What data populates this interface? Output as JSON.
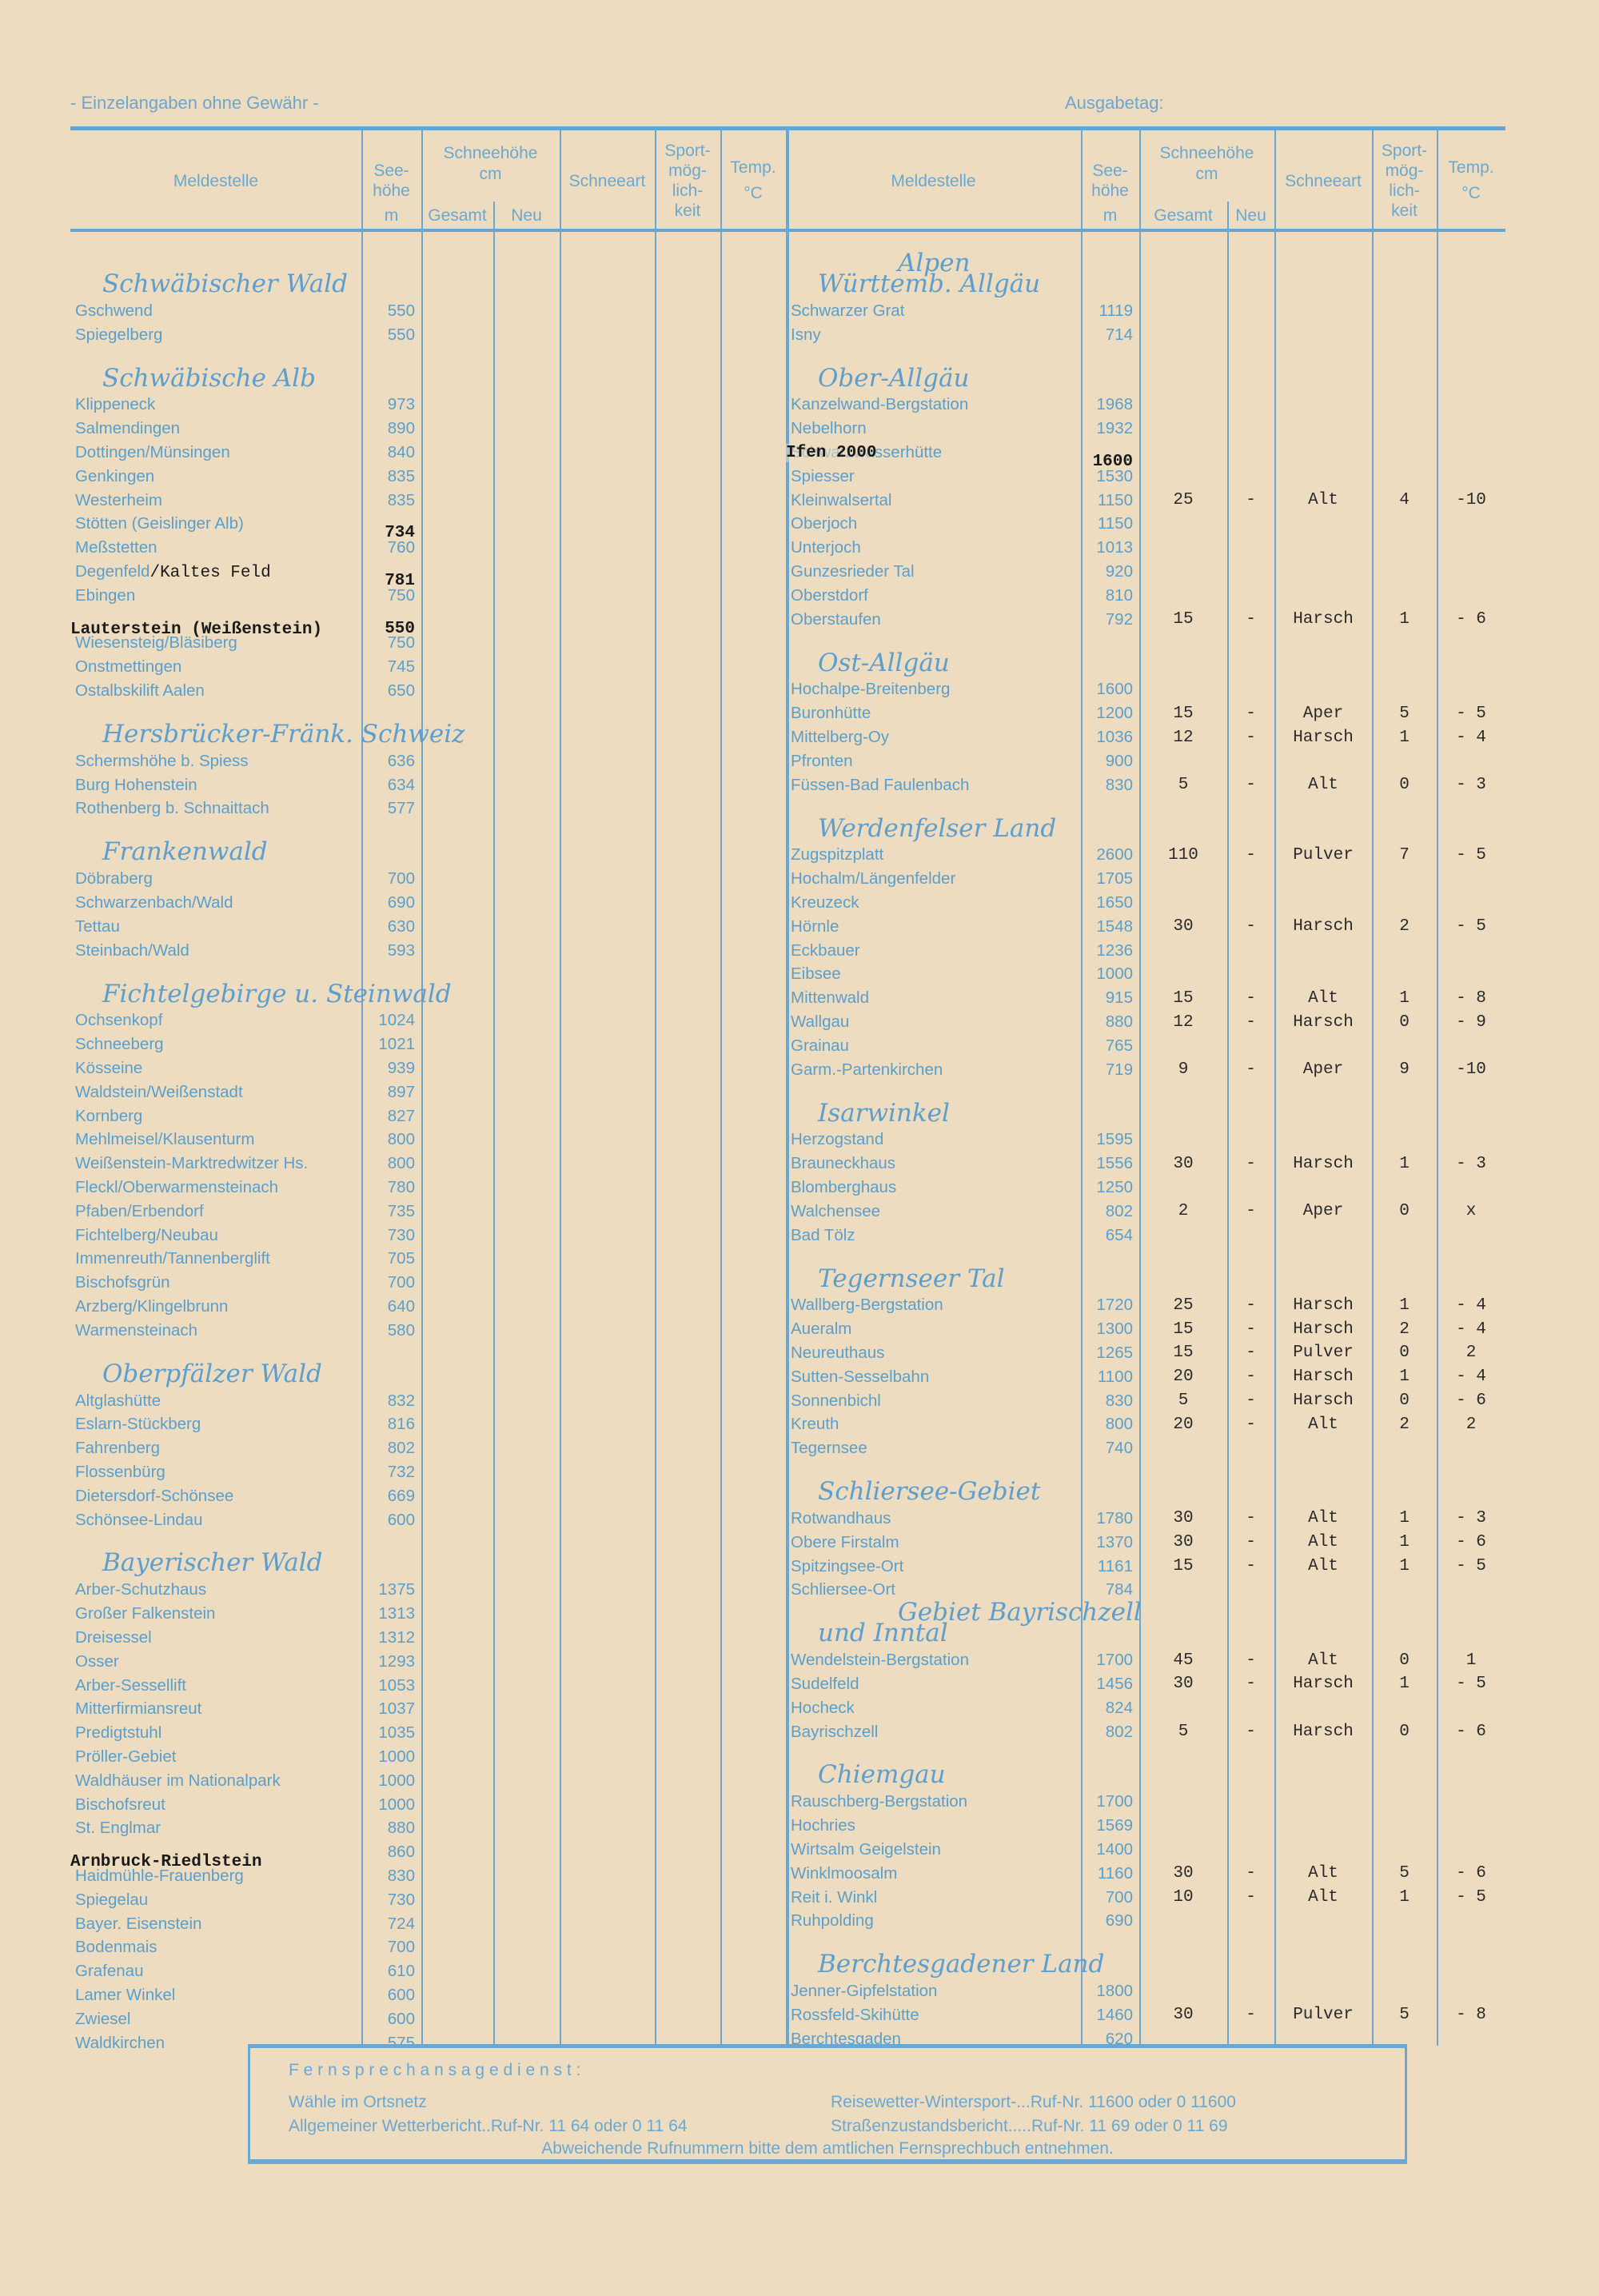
{
  "top": {
    "disclaimer": "- Einzelangaben ohne Gewähr -",
    "issue_date_label": "Ausgabetag:"
  },
  "columns": {
    "station": "Meldestelle",
    "altitude": "See-\nhöhe",
    "altitude_unit": "m",
    "snow_depth": "Schneehöhe",
    "snow_depth_unit": "cm",
    "total": "Gesamt",
    "new": "Neu",
    "snow_type": "Schneeart",
    "sport": "Sport-\nmög-\nlich-\nkeit",
    "temp": "Temp.",
    "temp_unit": "°C"
  },
  "left": [
    {
      "heading": [
        "Schwäbischer Wald"
      ],
      "rows": [
        {
          "name": "Gschwend",
          "alt": "550"
        },
        {
          "name": "Spiegelberg",
          "alt": "550"
        }
      ]
    },
    {
      "heading": [
        "Schwäbische Alb"
      ],
      "rows": [
        {
          "name": "Klippeneck",
          "alt": "973"
        },
        {
          "name": "Salmendingen",
          "alt": "890"
        },
        {
          "name": "Dottingen/Münsingen",
          "alt": "840"
        },
        {
          "name": "Genkingen",
          "alt": "835"
        },
        {
          "name": "Westerheim",
          "alt": "835"
        },
        {
          "name": "Stötten (Geislinger Alb)",
          "typed_alt": "734"
        },
        {
          "name": "Meßstetten",
          "alt": "760"
        },
        {
          "name": "Degenfeld",
          "typed_suffix": "/Kaltes Feld",
          "typed_alt": "781"
        },
        {
          "name": "Ebingen",
          "alt": "750"
        },
        {
          "typed_name": "Lauterstein (Weißenstein)",
          "typed_alt": "550"
        },
        {
          "name": "Wiesensteig/Bläsiberg",
          "alt": "750"
        },
        {
          "name": "Onstmettingen",
          "alt": "745"
        },
        {
          "name": "Ostalbskilift Aalen",
          "alt": "650"
        }
      ]
    },
    {
      "heading": [
        "Hersbrücker-Fränk. Schweiz"
      ],
      "rows": [
        {
          "name": "Schermshöhe b. Spiess",
          "alt": "636"
        },
        {
          "name": "Burg Hohenstein",
          "alt": "634"
        },
        {
          "name": "Rothenberg b. Schnaittach",
          "alt": "577"
        }
      ]
    },
    {
      "heading": [
        "Frankenwald"
      ],
      "rows": [
        {
          "name": "Döbraberg",
          "alt": "700"
        },
        {
          "name": "Schwarzenbach/Wald",
          "alt": "690"
        },
        {
          "name": "Tettau",
          "alt": "630"
        },
        {
          "name": "Steinbach/Wald",
          "alt": "593"
        }
      ]
    },
    {
      "heading": [
        "Fichtelgebirge u. Steinwald"
      ],
      "rows": [
        {
          "name": "Ochsenkopf",
          "alt": "1024"
        },
        {
          "name": "Schneeberg",
          "alt": "1021"
        },
        {
          "name": "Kösseine",
          "alt": "939"
        },
        {
          "name": "Waldstein/Weißenstadt",
          "alt": "897"
        },
        {
          "name": "Kornberg",
          "alt": "827"
        },
        {
          "name": "Mehlmeisel/Klausenturm",
          "alt": "800"
        },
        {
          "name": "Weißenstein-Marktredwitzer Hs.",
          "alt": "800"
        },
        {
          "name": "Fleckl/Oberwarmensteinach",
          "alt": "780"
        },
        {
          "name": "Pfaben/Erbendorf",
          "alt": "735"
        },
        {
          "name": "Fichtelberg/Neubau",
          "alt": "730"
        },
        {
          "name": "Immenreuth/Tannenberglift",
          "alt": "705"
        },
        {
          "name": "Bischofsgrün",
          "alt": "700"
        },
        {
          "name": "Arzberg/Klingelbrunn",
          "alt": "640"
        },
        {
          "name": "Warmensteinach",
          "alt": "580"
        }
      ]
    },
    {
      "heading": [
        "Oberpfälzer Wald"
      ],
      "rows": [
        {
          "name": "Altglashütte",
          "alt": "832"
        },
        {
          "name": "Eslarn-Stückberg",
          "alt": "816"
        },
        {
          "name": "Fahrenberg",
          "alt": "802"
        },
        {
          "name": "Flossenbürg",
          "alt": "732"
        },
        {
          "name": "Dietersdorf-Schönsee",
          "alt": "669"
        },
        {
          "name": "Schönsee-Lindau",
          "alt": "600"
        }
      ]
    },
    {
      "heading": [
        "Bayerischer Wald"
      ],
      "rows": [
        {
          "name": "Arber-Schutzhaus",
          "alt": "1375"
        },
        {
          "name": "Großer Falkenstein",
          "alt": "1313"
        },
        {
          "name": "Dreisessel",
          "alt": "1312"
        },
        {
          "name": "Osser",
          "alt": "1293"
        },
        {
          "name": "Arber-Sessellift",
          "alt": "1053"
        },
        {
          "name": "Mitterfirmiansreut",
          "alt": "1037"
        },
        {
          "name": "Predigtstuhl",
          "alt": "1035"
        },
        {
          "name": "Pröller-Gebiet",
          "alt": "1000"
        },
        {
          "name": "Waldhäuser im Nationalpark",
          "alt": "1000"
        },
        {
          "name": "Bischofsreut",
          "alt": "1000"
        },
        {
          "name": "St. Englmar",
          "alt": "880"
        },
        {
          "typed_name": "Arnbruck-Riedlstein",
          "alt": "860"
        },
        {
          "name": "Haidmühle-Frauenberg",
          "alt": "830"
        },
        {
          "name": "Spiegelau",
          "alt": "730"
        },
        {
          "name": "Bayer. Eisenstein",
          "alt": "724"
        },
        {
          "name": "Bodenmais",
          "alt": "700"
        },
        {
          "name": "Grafenau",
          "alt": "610"
        },
        {
          "name": "Lamer Winkel",
          "alt": "600"
        },
        {
          "name": "Zwiesel",
          "alt": "600"
        },
        {
          "name": "Waldkirchen",
          "alt": "575"
        }
      ]
    }
  ],
  "right": [
    {
      "heading": [
        "Alpen",
        "Württemb. Allgäu"
      ],
      "rows": [
        {
          "name": "Schwarzer Grat",
          "alt": "1119"
        },
        {
          "name": "Isny",
          "alt": "714"
        }
      ]
    },
    {
      "heading": [
        "Ober-Allgäu"
      ],
      "rows": [
        {
          "name": "Kanzelwand-Bergstation",
          "alt": "1968"
        },
        {
          "name": "Nebelhorn",
          "alt": "1932"
        },
        {
          "name": "Schwarzwasserhütte",
          "typed_name": "Ifen 2000",
          "typed_alt": "1600"
        },
        {
          "name": "Spiesser",
          "alt": "1530"
        },
        {
          "name": "Kleinwalsertal",
          "alt": "1150",
          "total": "25",
          "new": "-",
          "type": "Alt",
          "sport": "4",
          "temp": "-10"
        },
        {
          "name": "Oberjoch",
          "alt": "1150"
        },
        {
          "name": "Unterjoch",
          "alt": "1013"
        },
        {
          "name": "Gunzesrieder Tal",
          "alt": "920"
        },
        {
          "name": "Oberstdorf",
          "alt": "810"
        },
        {
          "name": "Oberstaufen",
          "alt": "792",
          "total": "15",
          "new": "-",
          "type": "Harsch",
          "sport": "1",
          "temp": "- 6"
        }
      ]
    },
    {
      "heading": [
        "Ost-Allgäu"
      ],
      "rows": [
        {
          "name": "Hochalpe-Breitenberg",
          "alt": "1600"
        },
        {
          "name": "Buronhütte",
          "alt": "1200",
          "total": "15",
          "new": "-",
          "type": "Aper",
          "sport": "5",
          "temp": "- 5"
        },
        {
          "name": "Mittelberg-Oy",
          "alt": "1036",
          "total": "12",
          "new": "-",
          "type": "Harsch",
          "sport": "1",
          "temp": "- 4"
        },
        {
          "name": "Pfronten",
          "alt": "900"
        },
        {
          "name": "Füssen-Bad Faulenbach",
          "alt": "830",
          "total": "5",
          "new": "-",
          "type": "Alt",
          "sport": "0",
          "temp": "- 3"
        }
      ]
    },
    {
      "heading": [
        "Werdenfelser Land"
      ],
      "rows": [
        {
          "name": "Zugspitzplatt",
          "alt": "2600",
          "total": "110",
          "new": "-",
          "type": "Pulver",
          "sport": "7",
          "temp": "- 5"
        },
        {
          "name": "Hochalm/Längenfelder",
          "alt": "1705"
        },
        {
          "name": "Kreuzeck",
          "alt": "1650"
        },
        {
          "name": "Hörnle",
          "alt": "1548",
          "total": "30",
          "new": "-",
          "type": "Harsch",
          "sport": "2",
          "temp": "- 5"
        },
        {
          "name": "Eckbauer",
          "alt": "1236"
        },
        {
          "name": "Eibsee",
          "alt": "1000"
        },
        {
          "name": "Mittenwald",
          "alt": "915",
          "total": "15",
          "new": "-",
          "type": "Alt",
          "sport": "1",
          "temp": "- 8"
        },
        {
          "name": "Wallgau",
          "alt": "880",
          "total": "12",
          "new": "-",
          "type": "Harsch",
          "sport": "0",
          "temp": "- 9"
        },
        {
          "name": "Grainau",
          "alt": "765"
        },
        {
          "name": "Garm.-Partenkirchen",
          "alt": "719",
          "total": "9",
          "new": "-",
          "type": "Aper",
          "sport": "9",
          "temp": "-10"
        }
      ]
    },
    {
      "heading": [
        "Isarwinkel"
      ],
      "rows": [
        {
          "name": "Herzogstand",
          "alt": "1595"
        },
        {
          "name": "Brauneckhaus",
          "alt": "1556",
          "total": "30",
          "new": "-",
          "type": "Harsch",
          "sport": "1",
          "temp": "- 3"
        },
        {
          "name": "Blomberghaus",
          "alt": "1250"
        },
        {
          "name": "Walchensee",
          "alt": "802",
          "total": "2",
          "new": "-",
          "type": "Aper",
          "sport": "0",
          "temp": "x"
        },
        {
          "name": "Bad Tölz",
          "alt": "654"
        }
      ]
    },
    {
      "heading": [
        "Tegernseer Tal"
      ],
      "rows": [
        {
          "name": "Wallberg-Bergstation",
          "alt": "1720",
          "total": "25",
          "new": "-",
          "type": "Harsch",
          "sport": "1",
          "temp": "- 4"
        },
        {
          "name": "Aueralm",
          "alt": "1300",
          "total": "15",
          "new": "-",
          "type": "Harsch",
          "sport": "2",
          "temp": "- 4"
        },
        {
          "name": "Neureuthaus",
          "alt": "1265",
          "total": "15",
          "new": "-",
          "type": "Pulver",
          "sport": "0",
          "temp": "2"
        },
        {
          "name": "Sutten-Sesselbahn",
          "alt": "1100",
          "total": "20",
          "new": "-",
          "type": "Harsch",
          "sport": "1",
          "temp": "- 4"
        },
        {
          "name": "Sonnenbichl",
          "alt": "830",
          "total": "5",
          "new": "-",
          "type": "Harsch",
          "sport": "0",
          "temp": "- 6"
        },
        {
          "name": "Kreuth",
          "alt": "800",
          "total": "20",
          "new": "-",
          "type": "Alt",
          "sport": "2",
          "temp": "2"
        },
        {
          "name": "Tegernsee",
          "alt": "740"
        }
      ]
    },
    {
      "heading": [
        "Schliersee-Gebiet"
      ],
      "rows": [
        {
          "name": "Rotwandhaus",
          "alt": "1780",
          "total": "30",
          "new": "-",
          "type": "Alt",
          "sport": "1",
          "temp": "- 3"
        },
        {
          "name": "Obere Firstalm",
          "alt": "1370",
          "total": "30",
          "new": "-",
          "type": "Alt",
          "sport": "1",
          "temp": "- 6"
        },
        {
          "name": "Spitzingsee-Ort",
          "alt": "1161",
          "total": "15",
          "new": "-",
          "type": "Alt",
          "sport": "1",
          "temp": "- 5"
        },
        {
          "name": "Schliersee-Ort",
          "alt": "784"
        }
      ]
    },
    {
      "heading": [
        "Gebiet Bayrischzell",
        "und Inntal"
      ],
      "rows": [
        {
          "name": "Wendelstein-Bergstation",
          "alt": "1700",
          "total": "45",
          "new": "-",
          "type": "Alt",
          "sport": "0",
          "temp": "1"
        },
        {
          "name": "Sudelfeld",
          "alt": "1456",
          "total": "30",
          "new": "-",
          "type": "Harsch",
          "sport": "1",
          "temp": "- 5"
        },
        {
          "name": "Hocheck",
          "alt": "824"
        },
        {
          "name": "Bayrischzell",
          "alt": "802",
          "total": "5",
          "new": "-",
          "type": "Harsch",
          "sport": "0",
          "temp": "- 6"
        }
      ]
    },
    {
      "heading": [
        "Chiemgau"
      ],
      "rows": [
        {
          "name": "Rauschberg-Bergstation",
          "alt": "1700"
        },
        {
          "name": "Hochries",
          "alt": "1569"
        },
        {
          "name": "Wirtsalm Geigelstein",
          "alt": "1400"
        },
        {
          "name": "Winklmoosalm",
          "alt": "1160",
          "total": "30",
          "new": "-",
          "type": "Alt",
          "sport": "5",
          "temp": "- 6"
        },
        {
          "name": "Reit i. Winkl",
          "alt": "700",
          "total": "10",
          "new": "-",
          "type": "Alt",
          "sport": "1",
          "temp": "- 5"
        },
        {
          "name": "Ruhpolding",
          "alt": "690"
        }
      ]
    },
    {
      "heading": [
        "Berchtesgadener Land"
      ],
      "rows": [
        {
          "name": "Jenner-Gipfelstation",
          "alt": "1800"
        },
        {
          "name": "Rossfeld-Skihütte",
          "alt": "1460",
          "total": "30",
          "new": "-",
          "type": "Pulver",
          "sport": "5",
          "temp": "- 8"
        },
        {
          "name": "Berchtesgaden",
          "alt": "620"
        }
      ]
    }
  ],
  "footer": {
    "title": "F e r n s p r e c h a n s a g e d i e n s t :",
    "dial": "Wähle im Ortsnetz",
    "weather": "Allgemeiner Wetterbericht..Ruf-Nr. 11 64 oder 0 11 64",
    "travel": "Reisewetter-Wintersport-...Ruf-Nr. 11600 oder 0 11600",
    "roads": "Straßenzustandsbericht.....Ruf-Nr. 11 69 oder 0 11 69",
    "note": "Abweichende Rufnummern bitte dem amtlichen Fernsprechbuch entnehmen."
  }
}
